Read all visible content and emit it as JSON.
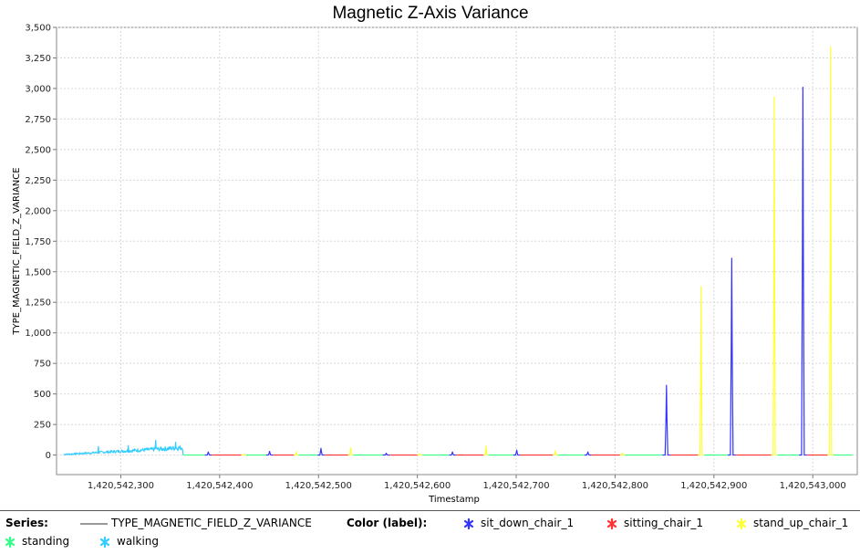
{
  "chart_data": {
    "type": "line",
    "title": "Magnetic Z-Axis Variance",
    "xlabel": "Timestamp",
    "ylabel": "TYPE_MAGNETIC_FIELD_Z_VARIANCE",
    "xlim": [
      1420542235,
      1420543045
    ],
    "ylim": [
      -160,
      3500
    ],
    "x_ticks": [
      1420542300,
      1420542400,
      1420542500,
      1420542600,
      1420542700,
      1420542800,
      1420542900,
      1420543000
    ],
    "x_tick_labels": [
      "1,420,542,300",
      "1,420,542,400",
      "1,420,542,500",
      "1,420,542,600",
      "1,420,542,700",
      "1,420,542,800",
      "1,420,542,900",
      "1,420,543,000"
    ],
    "y_ticks": [
      0,
      250,
      500,
      750,
      1000,
      1250,
      1500,
      1750,
      2000,
      2250,
      2500,
      2750,
      3000,
      3250,
      3500
    ],
    "y_tick_labels": [
      "0",
      "250",
      "500",
      "750",
      "1,000",
      "1,250",
      "1,500",
      "1,750",
      "2,000",
      "2,250",
      "2,500",
      "2,750",
      "3,000",
      "3,250",
      "3,500"
    ],
    "grid": true,
    "series_name": "TYPE_MAGNETIC_FIELD_Z_VARIANCE",
    "labels": [
      {
        "name": "sit_down_chair_1",
        "color": "#3333ff"
      },
      {
        "name": "sitting_chair_1",
        "color": "#ff3333"
      },
      {
        "name": "stand_up_chair_1",
        "color": "#ffff33"
      },
      {
        "name": "standing",
        "color": "#33ff88"
      },
      {
        "name": "walking",
        "color": "#33ccff"
      }
    ],
    "segments": [
      {
        "label": "walking",
        "start": 1420542242,
        "end": 1420542363,
        "kind": "noise"
      },
      {
        "label": "standing",
        "start": 1420542363,
        "end": 1420542385,
        "peak": 0
      },
      {
        "label": "sit_down_chair_1",
        "start": 1420542385,
        "end": 1420542392,
        "peak": 25
      },
      {
        "label": "sitting_chair_1",
        "start": 1420542392,
        "end": 1420542422,
        "peak": 0
      },
      {
        "label": "stand_up_chair_1",
        "start": 1420542422,
        "end": 1420542427,
        "peak": 5
      },
      {
        "label": "standing",
        "start": 1420542427,
        "end": 1420542447,
        "peak": 0
      },
      {
        "label": "sit_down_chair_1",
        "start": 1420542447,
        "end": 1420542454,
        "peak": 30
      },
      {
        "label": "sitting_chair_1",
        "start": 1420542454,
        "end": 1420542475,
        "peak": 0
      },
      {
        "label": "stand_up_chair_1",
        "start": 1420542475,
        "end": 1420542480,
        "peak": 25
      },
      {
        "label": "standing",
        "start": 1420542480,
        "end": 1420542499,
        "peak": 0
      },
      {
        "label": "sit_down_chair_1",
        "start": 1420542499,
        "end": 1420542506,
        "peak": 55
      },
      {
        "label": "sitting_chair_1",
        "start": 1420542506,
        "end": 1420542530,
        "peak": 0
      },
      {
        "label": "stand_up_chair_1",
        "start": 1420542530,
        "end": 1420542535,
        "peak": 60
      },
      {
        "label": "standing",
        "start": 1420542535,
        "end": 1420542565,
        "peak": 0
      },
      {
        "label": "sit_down_chair_1",
        "start": 1420542565,
        "end": 1420542572,
        "peak": 15
      },
      {
        "label": "sitting_chair_1",
        "start": 1420542572,
        "end": 1420542600,
        "peak": 0
      },
      {
        "label": "stand_up_chair_1",
        "start": 1420542600,
        "end": 1420542605,
        "peak": 10
      },
      {
        "label": "standing",
        "start": 1420542605,
        "end": 1420542632,
        "peak": 0
      },
      {
        "label": "sit_down_chair_1",
        "start": 1420542632,
        "end": 1420542639,
        "peak": 25
      },
      {
        "label": "sitting_chair_1",
        "start": 1420542639,
        "end": 1420542667,
        "peak": 0
      },
      {
        "label": "stand_up_chair_1",
        "start": 1420542667,
        "end": 1420542672,
        "peak": 75
      },
      {
        "label": "standing",
        "start": 1420542672,
        "end": 1420542697,
        "peak": 0
      },
      {
        "label": "sit_down_chair_1",
        "start": 1420542697,
        "end": 1420542704,
        "peak": 40
      },
      {
        "label": "sitting_chair_1",
        "start": 1420542704,
        "end": 1420542737,
        "peak": 0
      },
      {
        "label": "stand_up_chair_1",
        "start": 1420542737,
        "end": 1420542742,
        "peak": 35
      },
      {
        "label": "standing",
        "start": 1420542742,
        "end": 1420542769,
        "peak": 0
      },
      {
        "label": "sit_down_chair_1",
        "start": 1420542769,
        "end": 1420542776,
        "peak": 25
      },
      {
        "label": "sitting_chair_1",
        "start": 1420542776,
        "end": 1420542805,
        "peak": 0
      },
      {
        "label": "stand_up_chair_1",
        "start": 1420542805,
        "end": 1420542810,
        "peak": 15
      },
      {
        "label": "standing",
        "start": 1420542810,
        "end": 1420542848,
        "peak": 0
      },
      {
        "label": "sit_down_chair_1",
        "start": 1420542848,
        "end": 1420542856,
        "peak": 570
      },
      {
        "label": "sitting_chair_1",
        "start": 1420542856,
        "end": 1420542884,
        "peak": 0
      },
      {
        "label": "stand_up_chair_1",
        "start": 1420542884,
        "end": 1420542890,
        "peak": 1380
      },
      {
        "label": "standing",
        "start": 1420542890,
        "end": 1420542914,
        "peak": 0
      },
      {
        "label": "sit_down_chair_1",
        "start": 1420542914,
        "end": 1420542922,
        "peak": 1610
      },
      {
        "label": "sitting_chair_1",
        "start": 1420542922,
        "end": 1420542958,
        "peak": 0
      },
      {
        "label": "stand_up_chair_1",
        "start": 1420542958,
        "end": 1420542964,
        "peak": 2930
      },
      {
        "label": "standing",
        "start": 1420542964,
        "end": 1420542986,
        "peak": 0
      },
      {
        "label": "sit_down_chair_1",
        "start": 1420542986,
        "end": 1420542994,
        "peak": 3010
      },
      {
        "label": "sitting_chair_1",
        "start": 1420542994,
        "end": 1420543015,
        "peak": 0
      },
      {
        "label": "stand_up_chair_1",
        "start": 1420543015,
        "end": 1420543021,
        "peak": 3340
      },
      {
        "label": "standing",
        "start": 1420543021,
        "end": 1420543040,
        "peak": 0
      }
    ],
    "legend_position": "bottom"
  },
  "legend": {
    "series_heading": "Series:",
    "color_heading": "Color (label):"
  }
}
